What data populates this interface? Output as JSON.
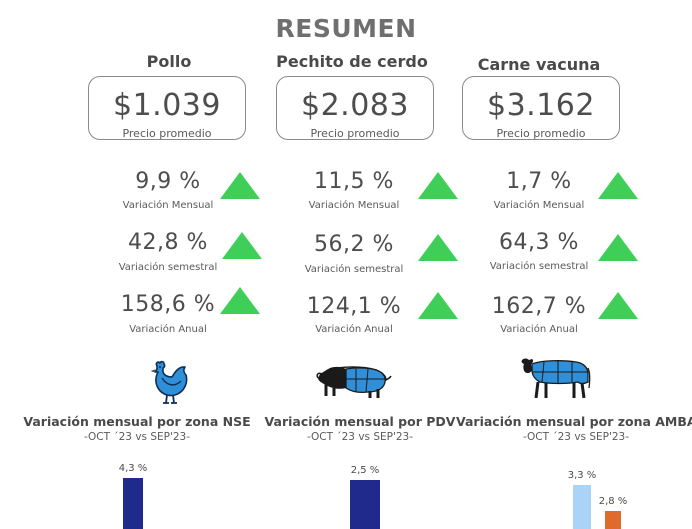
{
  "page": {
    "title": "RESUMEN"
  },
  "products": [
    {
      "name": "Pollo",
      "price": "$1.039",
      "price_label": "Precio promedio",
      "variations": [
        {
          "value": "9,9 %",
          "label": "Variación Mensual",
          "trend": "up"
        },
        {
          "value": "42,8 %",
          "label": "Variación semestral",
          "trend": "up"
        },
        {
          "value": "158,6 %",
          "label": "Variación Anual",
          "trend": "up"
        }
      ],
      "icon": "chicken-icon"
    },
    {
      "name": "Pechito de cerdo",
      "price": "$2.083",
      "price_label": "Precio promedio",
      "variations": [
        {
          "value": "11,5 %",
          "label": "Variación Mensual",
          "trend": "up"
        },
        {
          "value": "56,2 %",
          "label": "Variación semestral",
          "trend": "up"
        },
        {
          "value": "124,1 %",
          "label": "Variación Anual",
          "trend": "up"
        }
      ],
      "icon": "pig-icon"
    },
    {
      "name": "Carne vacuna",
      "price": "$3.162",
      "price_label": "Precio promedio",
      "variations": [
        {
          "value": "1,7 %",
          "label": "Variación Mensual",
          "trend": "up"
        },
        {
          "value": "64,3 %",
          "label": "Variación semestral",
          "trend": "up"
        },
        {
          "value": "162,7 %",
          "label": "Variación Anual",
          "trend": "up"
        }
      ],
      "icon": "cow-icon"
    }
  ],
  "colors": {
    "trend_up": "#3fcf59",
    "animal_fill": "#2f8fd8",
    "bar_navy": "#1f2a8c",
    "bar_lightblue": "#a9d3f7",
    "bar_orange": "#e06a2c"
  },
  "chart_data": [
    {
      "type": "bar",
      "title": "Variación mensual por zona NSE",
      "subtitle": "-OCT ´23 vs SEP'23-",
      "data_labels": [
        "4,3 %"
      ],
      "values": [
        4.3
      ]
    },
    {
      "type": "bar",
      "title": "Variación mensual por PDV",
      "subtitle": "-OCT ´23 vs SEP'23-",
      "data_labels": [
        "2,5 %"
      ],
      "values": [
        2.5
      ]
    },
    {
      "type": "bar",
      "title": "Variación mensual por zona AMBA",
      "subtitle": "-OCT ´23 vs SEP'23-",
      "data_labels": [
        "3,3 %",
        "2,8 %"
      ],
      "values": [
        3.3,
        2.8
      ]
    }
  ]
}
